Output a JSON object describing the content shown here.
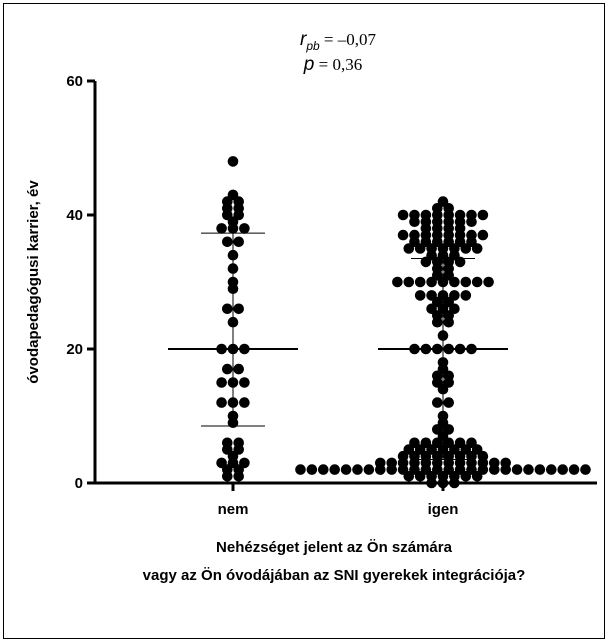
{
  "chart_data": {
    "type": "scatter",
    "annotation": {
      "r_symbol": "r",
      "r_subscript": "pb",
      "r_value": " = –0,07",
      "p_symbol": "p",
      "p_value": " = 0,36"
    },
    "ylabel": "óvodapedagógusi karrier, év",
    "xlabel_lines": [
      "Nehézséget jelent az Ön számára",
      "vagy az Ön óvodájában az SNI gyerekek integrációja?"
    ],
    "categories": [
      "nem",
      "igen"
    ],
    "ylim": [
      0,
      60
    ],
    "yticks": [
      0,
      20,
      40,
      60
    ],
    "grid": false,
    "legend": "none",
    "marker_color": "#000000",
    "series": [
      {
        "category": "nem",
        "median": 20,
        "q1": 8.5,
        "q3": 37.3,
        "points": [
          48,
          43,
          42,
          42,
          41,
          41,
          40,
          40,
          39,
          38,
          38,
          38,
          36,
          36,
          34,
          32,
          30,
          29,
          26,
          26,
          24,
          20,
          20,
          20,
          17,
          17,
          15,
          15,
          15,
          12,
          12,
          12,
          10,
          9,
          6,
          6,
          5,
          5,
          4,
          3,
          3,
          3,
          2,
          2,
          1,
          1
        ]
      },
      {
        "category": "igen",
        "median": 20,
        "q1": 3.5,
        "q3": 33.5,
        "points": [
          42,
          41,
          41,
          40,
          40,
          40,
          40,
          40,
          40,
          40,
          40,
          39,
          39,
          39,
          39,
          39,
          39,
          38,
          38,
          38,
          38,
          37,
          37,
          37,
          37,
          37,
          37,
          37,
          37,
          36,
          36,
          36,
          36,
          36,
          36,
          35,
          35,
          35,
          35,
          35,
          35,
          35,
          34,
          34,
          34,
          33,
          33,
          33,
          33,
          32,
          32,
          31,
          31,
          30,
          30,
          30,
          30,
          30,
          30,
          30,
          30,
          30,
          28,
          28,
          28,
          28,
          28,
          27,
          27,
          26,
          26,
          26,
          25,
          25,
          24,
          24,
          22,
          20,
          20,
          20,
          20,
          20,
          20,
          18,
          17,
          16,
          16,
          15,
          15,
          14,
          12,
          12,
          10,
          9,
          8,
          8,
          7,
          6,
          6,
          6,
          6,
          6,
          6,
          5,
          5,
          5,
          5,
          5,
          5,
          5,
          4,
          4,
          4,
          4,
          4,
          4,
          4,
          4,
          3,
          3,
          3,
          3,
          3,
          3,
          3,
          3,
          3,
          3,
          3,
          3,
          2,
          2,
          2,
          2,
          2,
          2,
          2,
          2,
          2,
          2,
          2,
          2,
          2,
          2,
          2,
          2,
          2,
          2,
          2,
          2,
          2,
          2,
          2,
          2,
          2,
          2,
          1,
          1,
          1,
          1,
          1,
          1,
          1,
          0,
          0,
          0
        ]
      }
    ]
  }
}
